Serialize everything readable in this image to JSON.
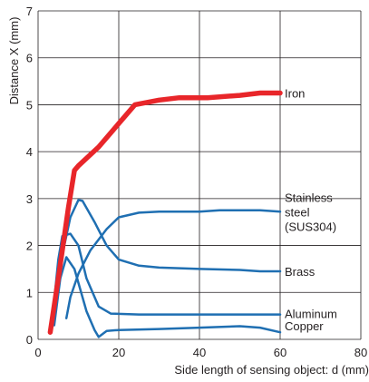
{
  "chart_data": {
    "type": "line",
    "xlabel": "Side length of sensing object: d (mm)",
    "ylabel": "Distance X (mm)",
    "xlim": [
      0,
      80
    ],
    "ylim": [
      0,
      7
    ],
    "xticks": [
      0,
      20,
      40,
      60,
      80
    ],
    "yticks": [
      0,
      1,
      2,
      3,
      4,
      5,
      6,
      7
    ],
    "grid": true,
    "legend": "none",
    "colors": {
      "iron": "#e8262a",
      "others": "#1f6fb2",
      "grid": "#231f20"
    },
    "series": [
      {
        "name": "Iron",
        "label_lines": [
          "Iron"
        ],
        "color": "#e8262a",
        "x": [
          3,
          5,
          7.5,
          9,
          10,
          15,
          20,
          24,
          30,
          35,
          42,
          50,
          55,
          60
        ],
        "y": [
          0.15,
          1.3,
          2.8,
          3.6,
          3.7,
          4.1,
          4.6,
          5.0,
          5.1,
          5.15,
          5.15,
          5.2,
          5.25,
          5.25
        ]
      },
      {
        "name": "Stainless steel (SUS304)",
        "label_lines": [
          "Stainless",
          "steel",
          "(SUS304)"
        ],
        "color": "#1f6fb2",
        "x": [
          7,
          8,
          10,
          13,
          17,
          20,
          25,
          30,
          40,
          45,
          55,
          60
        ],
        "y": [
          0.45,
          0.9,
          1.4,
          1.9,
          2.35,
          2.6,
          2.7,
          2.72,
          2.72,
          2.75,
          2.75,
          2.72
        ]
      },
      {
        "name": "Brass",
        "label_lines": [
          "Brass"
        ],
        "color": "#1f6fb2",
        "x": [
          4,
          6,
          8,
          10,
          11,
          14,
          17,
          20,
          25,
          30,
          40,
          50,
          55,
          60
        ],
        "y": [
          0.4,
          1.8,
          2.6,
          2.97,
          2.95,
          2.5,
          2.0,
          1.7,
          1.57,
          1.53,
          1.5,
          1.48,
          1.45,
          1.45
        ]
      },
      {
        "name": "Aluminum",
        "label_lines": [
          "Aluminum"
        ],
        "color": "#1f6fb2",
        "x": [
          3.5,
          5,
          6,
          8,
          10,
          12,
          15,
          18,
          25,
          30,
          40,
          50,
          60
        ],
        "y": [
          0.4,
          1.7,
          2.2,
          2.25,
          2.0,
          1.3,
          0.7,
          0.55,
          0.53,
          0.53,
          0.53,
          0.53,
          0.53
        ]
      },
      {
        "name": "Copper",
        "label_lines": [
          "Copper"
        ],
        "color": "#1f6fb2",
        "x": [
          4,
          5.5,
          7,
          9,
          12,
          14,
          15,
          17,
          20,
          30,
          40,
          50,
          55,
          60
        ],
        "y": [
          0.3,
          1.3,
          1.75,
          1.5,
          0.6,
          0.2,
          0.05,
          0.18,
          0.2,
          0.22,
          0.25,
          0.28,
          0.25,
          0.15
        ]
      }
    ]
  }
}
